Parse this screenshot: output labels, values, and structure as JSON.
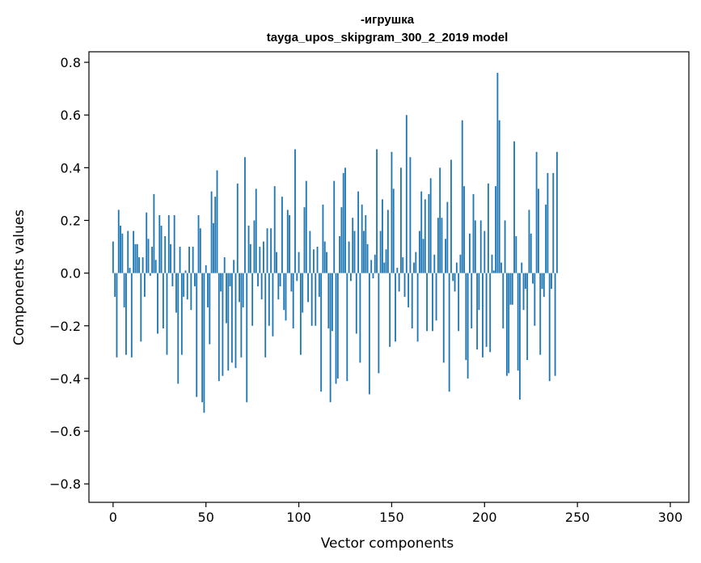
{
  "chart_data": {
    "type": "bar",
    "title": "-игрушка",
    "subtitle": "tayga_upos_skipgram_300_2_2019 model",
    "xlabel": "Vector components",
    "ylabel": "Components values",
    "xlim": [
      -13,
      310
    ],
    "ylim": [
      -0.87,
      0.84
    ],
    "x_ticks": [
      0,
      50,
      100,
      150,
      200,
      250,
      300
    ],
    "x_tick_labels": [
      "0",
      "50",
      "100",
      "150",
      "200",
      "250",
      "300"
    ],
    "y_ticks": [
      -0.8,
      -0.6,
      -0.4,
      -0.2,
      0.0,
      0.2,
      0.4,
      0.6,
      0.8
    ],
    "y_tick_labels": [
      "−0.8",
      "−0.6",
      "−0.4",
      "−0.2",
      "0.0",
      "0.2",
      "0.4",
      "0.6",
      "0.8"
    ],
    "grid": false,
    "legend": "none",
    "bar_color": "#1f77b4",
    "values": [
      0.12,
      -0.09,
      -0.32,
      0.24,
      0.18,
      0.15,
      -0.13,
      -0.31,
      0.16,
      0.02,
      -0.32,
      0.16,
      0.11,
      0.11,
      0.06,
      -0.26,
      0.06,
      -0.09,
      0.23,
      0.13,
      -0.01,
      0.1,
      0.3,
      0.05,
      -0.23,
      0.22,
      0.18,
      -0.21,
      0.14,
      -0.31,
      0.22,
      0.11,
      -0.05,
      0.22,
      -0.15,
      -0.42,
      0.1,
      -0.31,
      -0.09,
      0.01,
      -0.1,
      0.1,
      -0.14,
      0.1,
      -0.05,
      -0.47,
      0.22,
      0.17,
      -0.49,
      -0.53,
      0.03,
      -0.13,
      -0.27,
      0.31,
      0.19,
      0.29,
      0.39,
      -0.41,
      -0.07,
      -0.39,
      0.06,
      -0.19,
      -0.37,
      -0.05,
      -0.34,
      0.05,
      -0.36,
      0.34,
      -0.11,
      -0.32,
      -0.13,
      0.44,
      -0.49,
      0.18,
      0.11,
      -0.2,
      0.2,
      0.32,
      -0.05,
      0.1,
      -0.1,
      0.12,
      -0.32,
      0.17,
      -0.2,
      0.17,
      -0.24,
      0.33,
      0.08,
      -0.1,
      -0.05,
      0.29,
      -0.14,
      -0.18,
      0.24,
      0.22,
      -0.07,
      -0.21,
      0.47,
      -0.03,
      0.08,
      -0.31,
      -0.15,
      0.25,
      0.35,
      -0.11,
      0.16,
      -0.2,
      0.09,
      -0.2,
      0.1,
      -0.09,
      -0.45,
      0.26,
      0.12,
      0.08,
      -0.21,
      -0.49,
      -0.22,
      0.35,
      -0.42,
      -0.4,
      0.14,
      0.25,
      0.38,
      0.4,
      -0.41,
      0.12,
      -0.03,
      0.21,
      0.16,
      -0.23,
      0.31,
      -0.34,
      0.26,
      0.16,
      0.22,
      0.11,
      -0.46,
      0.05,
      -0.02,
      0.07,
      0.47,
      -0.38,
      0.16,
      0.28,
      0.04,
      0.09,
      0.24,
      -0.28,
      0.46,
      0.32,
      -0.26,
      0.02,
      -0.07,
      0.4,
      0.06,
      -0.09,
      0.6,
      -0.13,
      0.44,
      -0.21,
      0.04,
      0.08,
      -0.26,
      0.16,
      0.31,
      0.13,
      0.28,
      -0.22,
      0.3,
      0.36,
      -0.22,
      0.07,
      -0.18,
      0.21,
      0.4,
      0.21,
      -0.34,
      0.13,
      0.27,
      -0.45,
      0.43,
      -0.03,
      -0.07,
      0.04,
      -0.22,
      0.07,
      0.58,
      0.33,
      -0.33,
      -0.4,
      0.15,
      -0.21,
      0.3,
      0.2,
      -0.29,
      -0.14,
      0.2,
      -0.32,
      0.16,
      -0.28,
      0.34,
      -0.3,
      0.07,
      0.01,
      0.33,
      0.76,
      0.58,
      0.04,
      -0.21,
      0.2,
      -0.39,
      -0.38,
      -0.12,
      -0.12,
      0.5,
      0.14,
      -0.37,
      -0.48,
      0.04,
      -0.14,
      -0.06,
      -0.33,
      0.24,
      0.15,
      -0.04,
      -0.2,
      0.46,
      0.32,
      -0.31,
      -0.06,
      -0.09,
      0.26,
      0.38,
      -0.41,
      -0.06,
      0.38,
      -0.39,
      0.46
    ]
  }
}
